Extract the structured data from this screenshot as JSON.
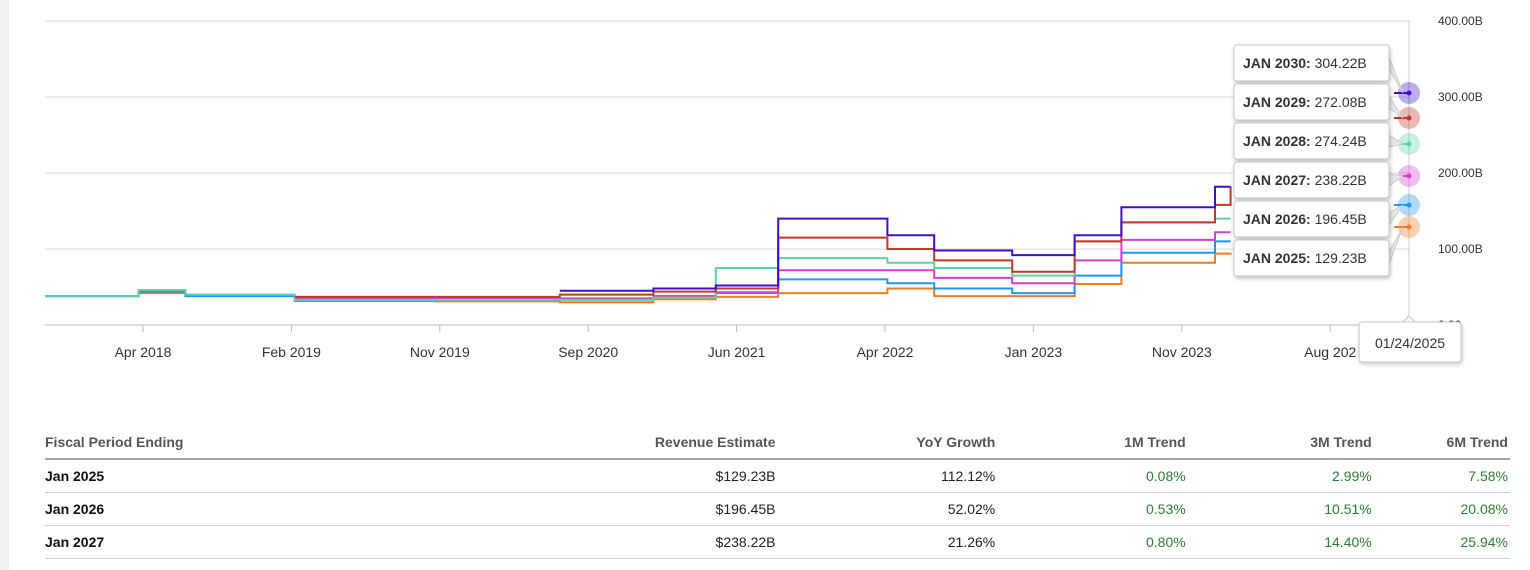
{
  "chart_data": {
    "type": "line",
    "ylim": [
      0,
      400
    ],
    "y_unit": "B",
    "y_ticks": [
      "0.00",
      "100.00B",
      "200.00B",
      "300.00B",
      "400.00B"
    ],
    "x_ticks": [
      "Apr 2018",
      "Feb 2019",
      "Nov 2019",
      "Sep 2020",
      "Jun 2021",
      "Apr 2022",
      "Jan 2023",
      "Nov 2023",
      "Aug 202"
    ],
    "crosshair_label": "01/24/2025",
    "grid": true,
    "series": [
      {
        "name": "JAN 2025",
        "value_label": "129.23B",
        "color": "#f47c20",
        "x": [
          "2017-10",
          "2018-04",
          "2018-07",
          "2019-02",
          "2019-11",
          "2020-07",
          "2021-01",
          "2021-05",
          "2021-09",
          "2022-04",
          "2022-07",
          "2022-12",
          "2023-04",
          "2023-07",
          "2024-01",
          "2024-02"
        ],
        "y": [
          38,
          42,
          38,
          32,
          31,
          30,
          34,
          37,
          42,
          48,
          38,
          38,
          54,
          82,
          94,
          95
        ]
      },
      {
        "name": "JAN 2026",
        "value_label": "196.45B",
        "color": "#2196f3",
        "x": [
          "2017-10",
          "2018-04",
          "2018-07",
          "2019-02",
          "2019-11",
          "2020-07",
          "2021-01",
          "2021-05",
          "2021-09",
          "2022-04",
          "2022-07",
          "2022-12",
          "2023-04",
          "2023-07",
          "2024-01",
          "2024-02"
        ],
        "y": [
          38,
          44,
          38,
          32,
          33,
          34,
          38,
          42,
          60,
          55,
          48,
          42,
          65,
          95,
          110,
          110
        ]
      },
      {
        "name": "JAN 2027",
        "value_label": "238.22B",
        "color": "#d63fcf",
        "x": [
          "2019-02",
          "2020-07",
          "2021-01",
          "2021-05",
          "2021-09",
          "2022-04",
          "2022-07",
          "2022-12",
          "2023-04",
          "2023-07",
          "2024-01",
          "2024-02"
        ],
        "y": [
          35,
          35,
          38,
          43,
          72,
          72,
          62,
          55,
          85,
          112,
          122,
          122
        ]
      },
      {
        "name": "JAN 2028",
        "value_label": "274.24B",
        "color": "#5ad4a6",
        "x": [
          "2017-10",
          "2018-04",
          "2018-07",
          "2019-02",
          "2019-11",
          "2020-07",
          "2021-01",
          "2021-05",
          "2021-09",
          "2022-04",
          "2022-07",
          "2022-12",
          "2023-04",
          "2023-07",
          "2024-01",
          "2024-02"
        ],
        "y": [
          38,
          46,
          40,
          33,
          33,
          33,
          36,
          75,
          88,
          82,
          75,
          65,
          110,
          135,
          140,
          140
        ]
      },
      {
        "name": "JAN 2029",
        "value_label": "272.08B",
        "color": "#c0392b",
        "x": [
          "2019-02",
          "2020-07",
          "2021-01",
          "2021-05",
          "2021-09",
          "2022-04",
          "2022-07",
          "2022-12",
          "2023-04",
          "2023-07",
          "2024-01",
          "2024-02"
        ],
        "y": [
          37,
          40,
          44,
          48,
          115,
          100,
          85,
          70,
          110,
          135,
          158,
          182
        ]
      },
      {
        "name": "JAN 2030",
        "value_label": "304.22B",
        "color": "#3d10c9",
        "x": [
          "2020-07",
          "2021-01",
          "2021-05",
          "2021-09",
          "2022-04",
          "2022-07",
          "2022-12",
          "2023-04",
          "2023-07",
          "2024-01",
          "2024-02"
        ],
        "y": [
          45,
          48,
          52,
          140,
          118,
          98,
          92,
          118,
          155,
          182,
          182
        ]
      }
    ]
  },
  "table": {
    "headers": [
      "Fiscal Period Ending",
      "Revenue Estimate",
      "YoY Growth",
      "1M Trend",
      "3M Trend",
      "6M Trend"
    ],
    "rows": [
      {
        "period": "Jan 2025",
        "revenue": "$129.23B",
        "yoy": "112.12%",
        "m1": "0.08%",
        "m3": "2.99%",
        "m6": "7.58%"
      },
      {
        "period": "Jan 2026",
        "revenue": "$196.45B",
        "yoy": "52.02%",
        "m1": "0.53%",
        "m3": "10.51%",
        "m6": "20.08%"
      },
      {
        "period": "Jan 2027",
        "revenue": "$238.22B",
        "yoy": "21.26%",
        "m1": "0.80%",
        "m3": "14.40%",
        "m6": "25.94%"
      }
    ]
  }
}
